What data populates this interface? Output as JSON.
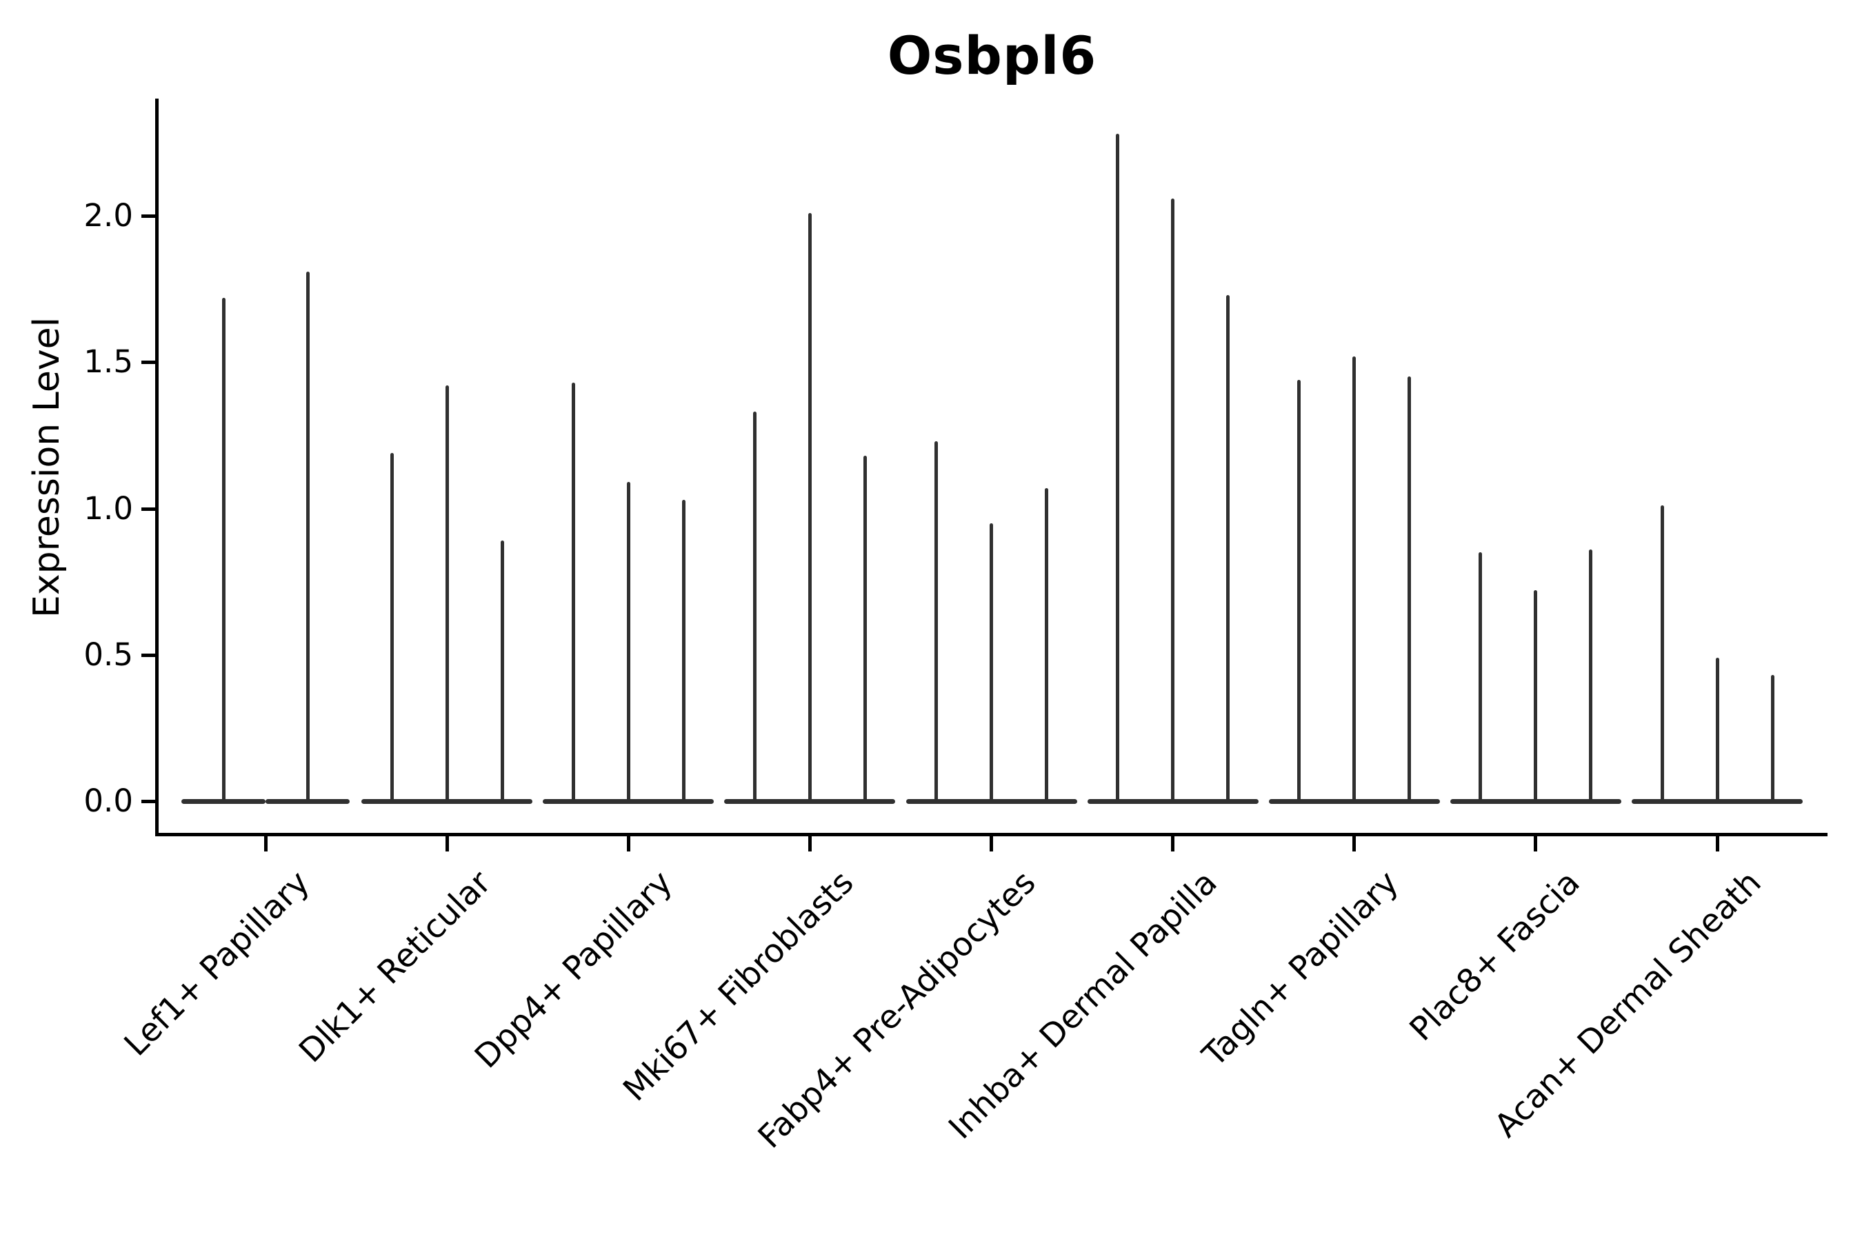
{
  "title": "Osbpl6",
  "y_axis": {
    "label": "Expression Level"
  },
  "chart_data": {
    "type": "violin",
    "title": "Osbpl6",
    "xlabel": "",
    "ylabel": "Expression Level",
    "ylim": [
      -0.11,
      2.4
    ],
    "grid": false,
    "legend_position": "none",
    "y_ticks": [
      0.0,
      0.5,
      1.0,
      1.5,
      2.0
    ],
    "y_tick_labels": [
      "0.0",
      "0.5",
      "1.0",
      "1.5",
      "2.0"
    ],
    "categories": [
      "Lef1+ Papillary",
      "Dlk1+ Reticular",
      "Dpp4+ Papillary",
      "Mki67+ Fibroblasts",
      "Fabp4+ Pre-Adipocytes",
      "Inhba+ Dermal Papilla",
      "Tagln+ Papillary",
      "Plac8+ Fascia",
      "Acan+ Dermal Sheath"
    ],
    "baseline_value": 0.0,
    "violins_per_category_note": "Each category shows narrow spike-shaped violins (bulk of density at 0, thin tail up to the listed max expression value)",
    "violin_spike_heights": [
      [
        1.72,
        1.81
      ],
      [
        1.19,
        1.42,
        0.89
      ],
      [
        1.43,
        1.09,
        1.03
      ],
      [
        1.33,
        2.01,
        1.18
      ],
      [
        1.23,
        0.95,
        1.07
      ],
      [
        2.28,
        2.06,
        1.73
      ],
      [
        1.44,
        1.52,
        1.45
      ],
      [
        0.85,
        0.72,
        0.86
      ],
      [
        1.01,
        0.49,
        0.43
      ]
    ],
    "colors": {
      "violin": "#303030",
      "axis": "#000000",
      "text": "#000000",
      "background": "#ffffff"
    }
  }
}
